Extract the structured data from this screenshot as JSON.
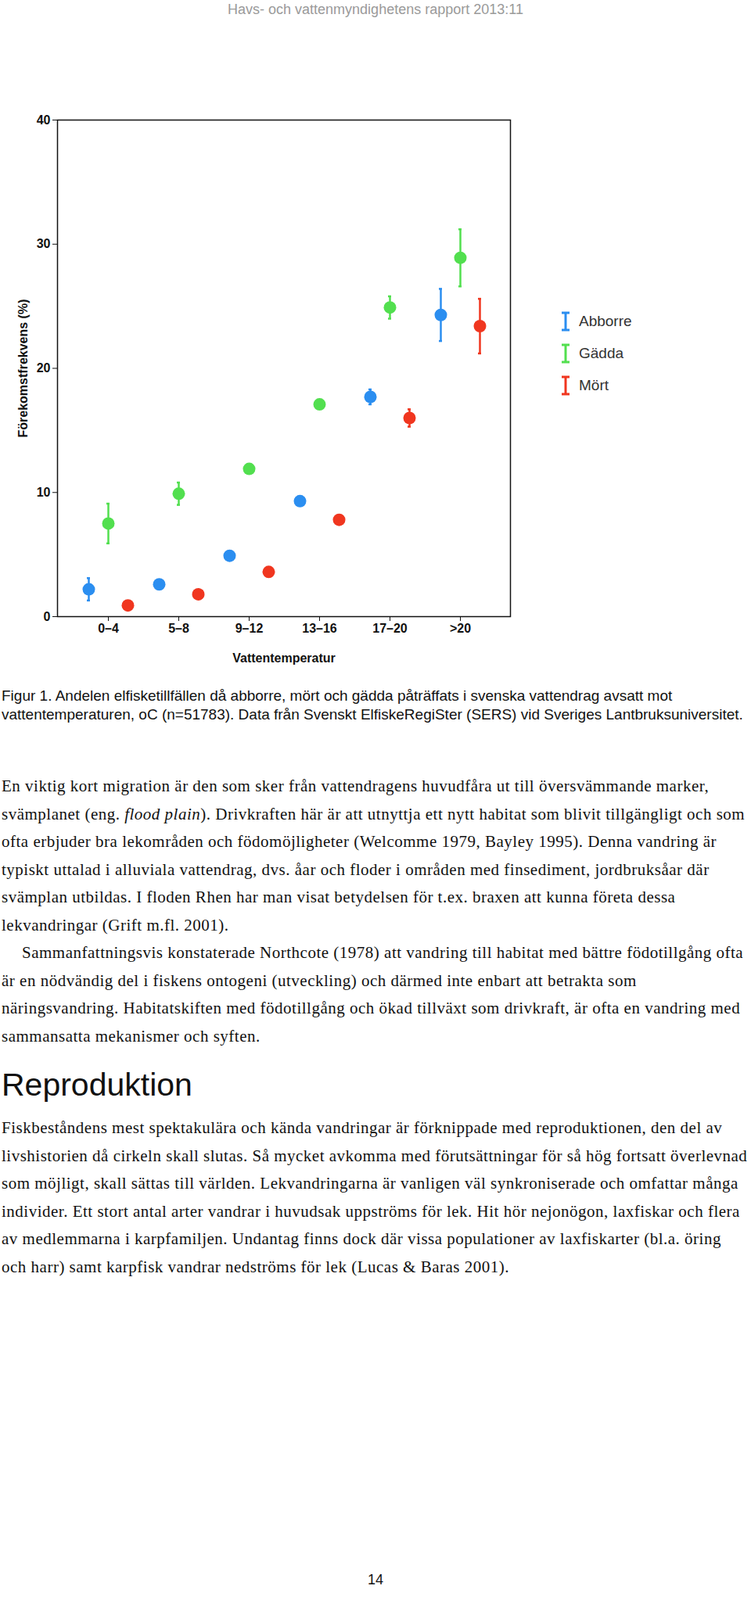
{
  "header": "Havs- och vattenmyndighetens rapport 2013:11",
  "chart_data": {
    "type": "scatter",
    "x_label": "Vattentemperatur",
    "y_label": "Förekomstfrekvens (%)",
    "categories": [
      "0–4",
      "5–8",
      "9–12",
      "13–16",
      "17–20",
      ">20"
    ],
    "series": [
      {
        "name": "Abborre",
        "color": "#2b8ef0",
        "values": [
          2.2,
          2.6,
          4.9,
          9.3,
          17.7,
          24.3
        ],
        "errors": [
          0.9,
          0.3,
          0.3,
          0.3,
          0.6,
          2.1
        ]
      },
      {
        "name": "Gädda",
        "color": "#52df4f",
        "values": [
          7.5,
          9.9,
          11.9,
          17.1,
          24.9,
          28.9
        ],
        "errors": [
          1.6,
          0.9,
          0.3,
          0.3,
          0.9,
          2.3
        ]
      },
      {
        "name": "Mört",
        "color": "#f0361f",
        "values": [
          0.9,
          1.8,
          3.6,
          7.8,
          16.0,
          23.4
        ],
        "errors": [
          0.3,
          0.3,
          0.3,
          0.3,
          0.7,
          2.2
        ]
      }
    ],
    "ylim": [
      0,
      40
    ],
    "yticks": [
      0,
      10,
      20,
      30,
      40
    ],
    "legend": "right",
    "marker": "circle"
  },
  "caption": "Figur 1. Andelen elfisketillfällen då abborre, mört och gädda påträffats i svenska vattendrag avsatt mot vattentemperaturen, oC (n=51783). Data från Svenskt ElfiskeRegiSter (SERS) vid Sveriges Lantbruksuniversitet.",
  "paragraphs": [
    [
      {
        "text": "En viktig kort migration är den som sker från vattendragens huvudfåra ut till översvämmande marker, svämplanet (eng. "
      },
      {
        "text": "flood plain",
        "italic": true
      },
      {
        "text": "). Drivkraften här är att utnyttja ett nytt habitat som blivit tillgängligt och som ofta erbjuder bra lekområden och födomöjligheter (Welcomme 1979, Bayley 1995). Denna vandring är typiskt uttalad i alluviala vattendrag, dvs. åar och floder i områden med finsediment, jordbruksåar där svämplan utbildas. I floden Rhen har man visat betydelsen för t.ex. braxen att kunna företa dessa lekvandringar (Grift m.fl. 2001)."
      }
    ],
    [
      {
        "text": "Sammanfattningsvis konstaterade Northcote (1978) att vandring till habitat med bättre födotillgång ofta är en nödvändig del i fiskens ontogeni (utveckling) och därmed inte enbart att betrakta som näringsvandring. Habitatskiften med födotillgång och ökad tillväxt som drivkraft, är ofta en vandring med sammansatta mekanismer och syften."
      }
    ]
  ],
  "heading": "Reproduktion",
  "paragraphs_after": [
    [
      {
        "text": "Fiskbeståndens mest spektakulära och kända vandringar är förknippade med reproduktionen, den del av livshistorien då cirkeln skall slutas. Så mycket avkomma med förutsättningar för så hög fortsatt överlevnad som möjligt, skall sättas till världen. Lekvandringarna är vanligen väl synkroniserade och omfattar många individer. Ett stort antal arter vandrar i huvudsak uppströms för lek. Hit hör nejonögon, laxfiskar och flera av medlemmarna i karpfamiljen. Undantag finns dock där vissa populationer av laxfiskarter (bl.a. öring och harr) samt karpfisk vandrar nedströms för lek (Lucas & Baras 2001)."
      }
    ]
  ],
  "page_number": "14"
}
